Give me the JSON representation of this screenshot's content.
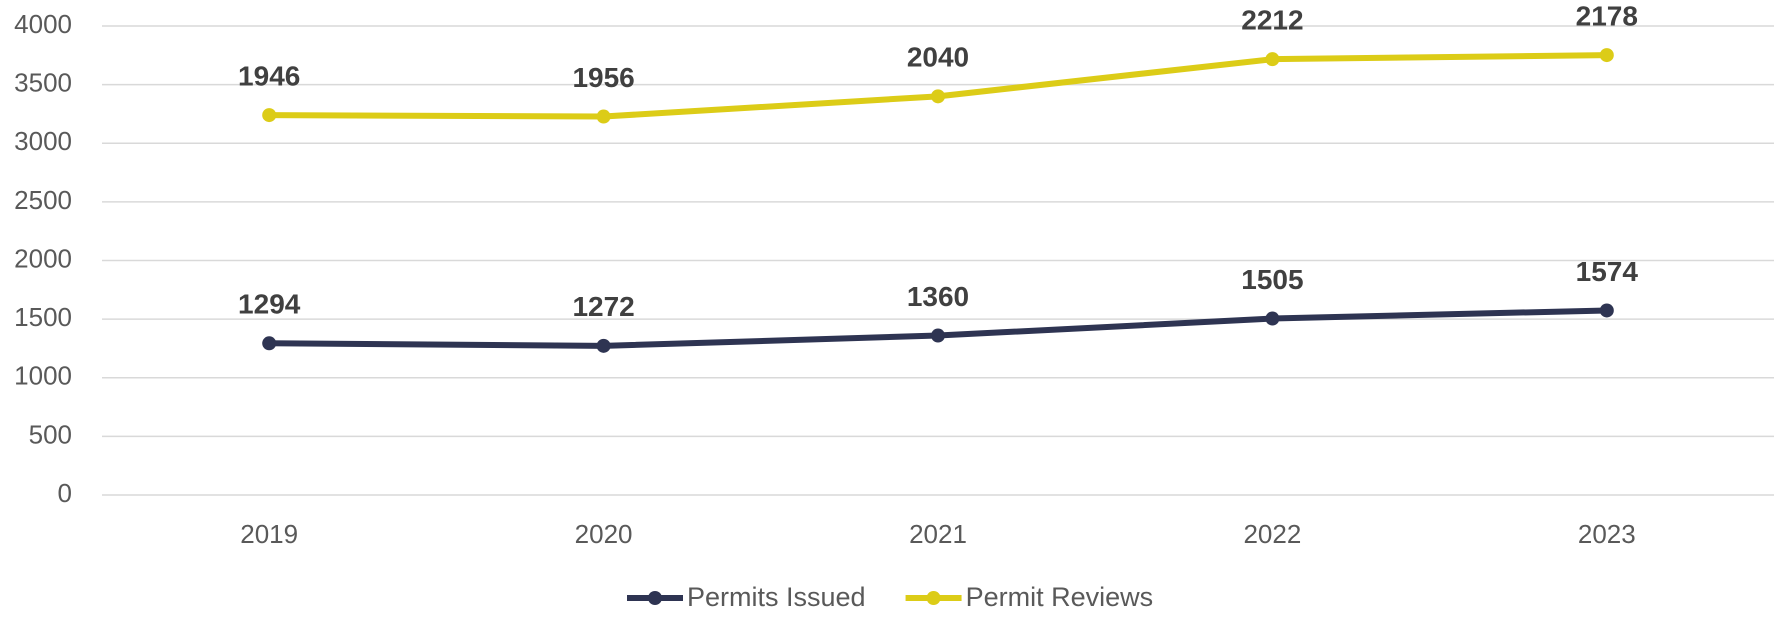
{
  "chart_data": {
    "type": "line",
    "stacked": true,
    "categories": [
      "2019",
      "2020",
      "2021",
      "2022",
      "2023"
    ],
    "series": [
      {
        "name": "Permits Issued",
        "color": "#2e3452",
        "values": [
          1294,
          1272,
          1360,
          1505,
          1574
        ]
      },
      {
        "name": "Permit Reviews",
        "color": "#dccc17",
        "values": [
          1946,
          1956,
          2040,
          2212,
          2178
        ]
      }
    ],
    "ylim": [
      0,
      4000
    ],
    "yticks": [
      0,
      500,
      1000,
      1500,
      2000,
      2500,
      3000,
      3500,
      4000
    ],
    "grid": true,
    "legend": "bottom"
  }
}
